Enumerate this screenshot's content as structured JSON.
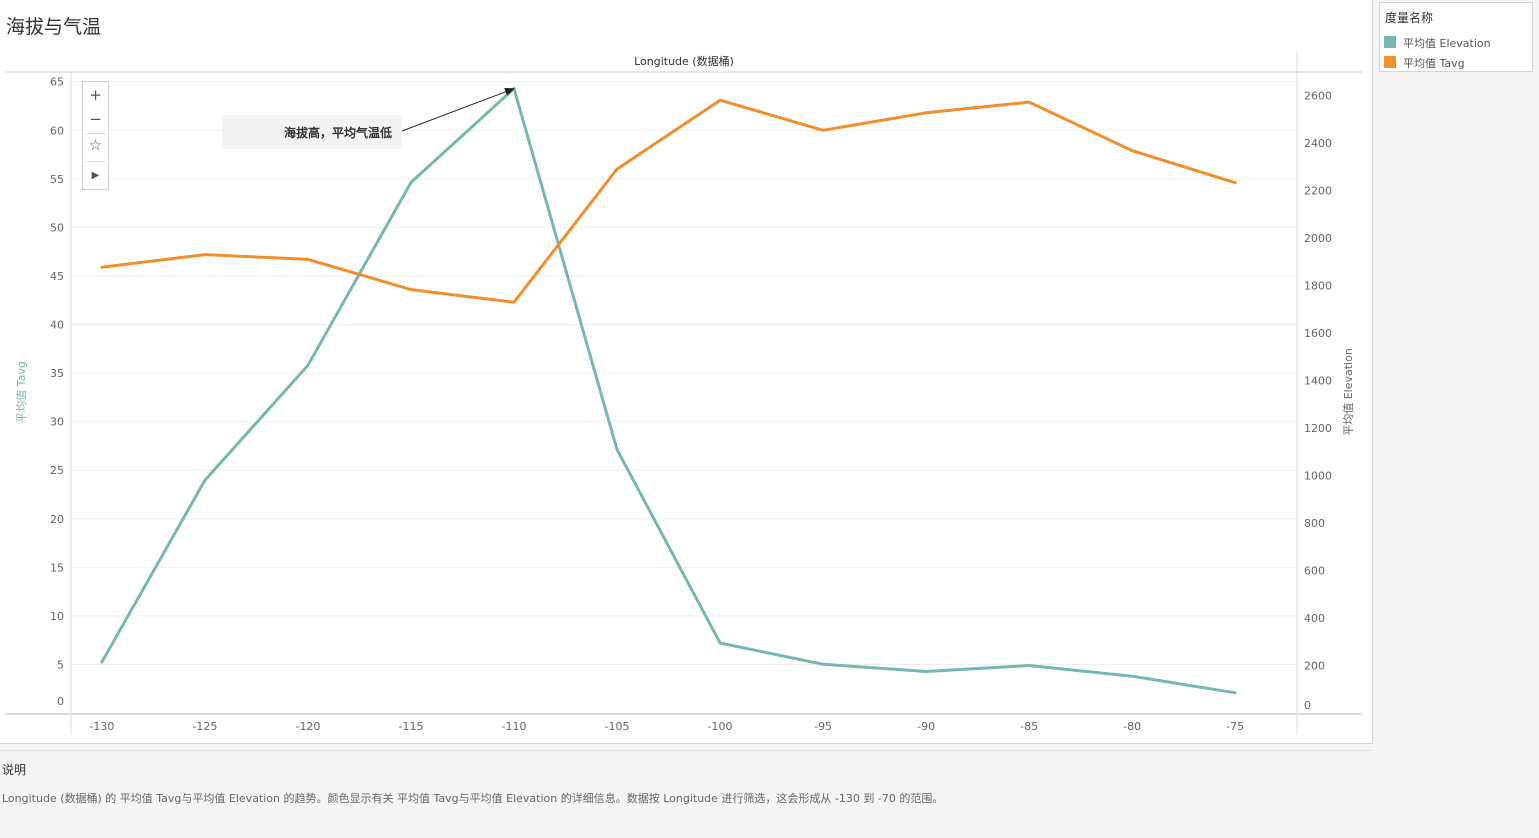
{
  "sheet_title": "海拔与气温",
  "legend": {
    "title": "度量名称",
    "items": [
      {
        "label": "平均值 Elevation",
        "color": "#76b7b2"
      },
      {
        "label": "平均值 Tavg",
        "color": "#f28e2b"
      }
    ]
  },
  "toolbar": {
    "zoom_in_icon": "plus-icon",
    "zoom_out_icon": "minus-icon",
    "pin_icon": "pin-icon",
    "play_icon": "play-icon"
  },
  "annotation": {
    "text": "海拔高，平均气温低",
    "x": -110,
    "y": 2630,
    "axis": "right"
  },
  "caption": {
    "title": "说明",
    "text": "Longitude (数据桶) 的 平均值 Tavg与平均值 Elevation 的趋势。颜色显示有关 平均值 Tavg与平均值 Elevation 的详细信息。数据按 Longitude 进行筛选，这会形成从 -130 到 -70 的范围。"
  },
  "chart_data": {
    "type": "line",
    "title": "海拔与气温",
    "xlabel": "Longitude (数据桶)",
    "x": [
      -130,
      -125,
      -120,
      -115,
      -110,
      -105,
      -100,
      -95,
      -90,
      -85,
      -80,
      -75
    ],
    "xlim": [
      -131.5,
      -72
    ],
    "xticks": [
      -130,
      -125,
      -120,
      -115,
      -110,
      -105,
      -100,
      -95,
      -90,
      -85,
      -80,
      -75
    ],
    "y_left": {
      "label": "平均值 Tavg",
      "range": [
        0,
        66
      ],
      "ticks": [
        0,
        5,
        10,
        15,
        20,
        25,
        30,
        35,
        40,
        45,
        50,
        55,
        60,
        65
      ]
    },
    "y_right": {
      "label": "平均值 Elevation",
      "range": [
        0,
        2700
      ],
      "ticks": [
        0,
        200,
        400,
        600,
        800,
        1000,
        1200,
        1400,
        1600,
        1800,
        2000,
        2200,
        2400,
        2600
      ]
    },
    "grid": true,
    "legend_position": "right",
    "series": [
      {
        "name": "平均值 Elevation",
        "axis": "right",
        "color": "#76b7b2",
        "values": [
          215,
          980,
          1465,
          2235,
          2630,
          1110,
          295,
          205,
          175,
          200,
          155,
          85
        ]
      },
      {
        "name": "平均值 Tavg",
        "axis": "left",
        "color": "#f28e2b",
        "values": [
          45.9,
          47.2,
          46.7,
          43.6,
          42.3,
          56.0,
          63.1,
          60.0,
          61.8,
          62.9,
          57.9,
          54.6
        ]
      }
    ]
  }
}
